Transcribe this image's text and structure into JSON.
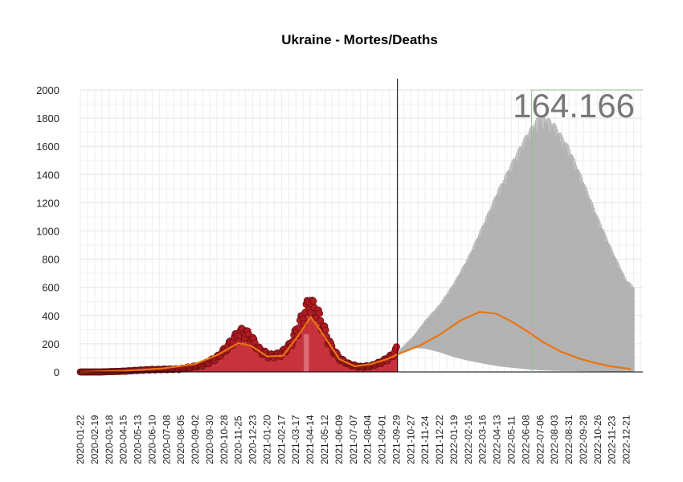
{
  "chart_data": {
    "type": "bar",
    "title": "Ukraine - Mortes/Deaths",
    "annotation": "164.166",
    "ylim": [
      0,
      2000
    ],
    "y_ticks": [
      0,
      200,
      400,
      600,
      800,
      1000,
      1200,
      1400,
      1600,
      1800,
      2000
    ],
    "x_range": [
      "2020-01-22",
      "2023-01-22"
    ],
    "x_ticks": [
      "2020-01-22",
      "2020-02-19",
      "2020-03-18",
      "2020-04-15",
      "2020-05-13",
      "2020-06-10",
      "2020-07-08",
      "2020-08-05",
      "2020-09-02",
      "2020-09-30",
      "2020-10-28",
      "2020-11-25",
      "2020-12-23",
      "2021-01-20",
      "2021-02-17",
      "2021-03-17",
      "2021-04-14",
      "2021-05-12",
      "2021-06-09",
      "2021-07-07",
      "2021-08-04",
      "2021-09-01",
      "2021-09-29",
      "2021-10-27",
      "2021-11-24",
      "2021-12-22",
      "2022-01-19",
      "2022-02-16",
      "2022-03-16",
      "2022-04-13",
      "2022-05-11",
      "2022-06-08",
      "2022-07-06",
      "2022-08-03",
      "2022-08-31",
      "2022-09-28",
      "2022-10-26",
      "2022-11-23",
      "2022-12-21"
    ],
    "forecast_start": "2021-10-01",
    "vertical_marker": "2022-06-19",
    "grid": true,
    "observed_daily": {
      "dates": [
        "2020-01-22",
        "2020-03-01",
        "2020-04-15",
        "2020-06-01",
        "2020-08-01",
        "2020-09-15",
        "2020-10-15",
        "2020-11-01",
        "2020-11-20",
        "2020-12-05",
        "2020-12-20",
        "2021-01-05",
        "2021-01-25",
        "2021-02-15",
        "2021-03-05",
        "2021-03-25",
        "2021-04-05",
        "2021-04-12",
        "2021-04-20",
        "2021-04-28",
        "2021-05-10",
        "2021-05-25",
        "2021-06-10",
        "2021-06-30",
        "2021-07-20",
        "2021-08-10",
        "2021-09-01",
        "2021-09-20",
        "2021-09-30"
      ],
      "values": [
        0,
        0,
        5,
        15,
        20,
        45,
        100,
        160,
        240,
        280,
        230,
        150,
        110,
        120,
        180,
        330,
        420,
        470,
        440,
        400,
        300,
        170,
        90,
        50,
        35,
        40,
        70,
        110,
        160
      ]
    },
    "trend_line": {
      "name": "trend",
      "color": "#e87511",
      "dates": [
        "2020-01-22",
        "2020-04-15",
        "2020-07-01",
        "2020-09-01",
        "2020-10-15",
        "2020-11-25",
        "2020-12-20",
        "2021-01-20",
        "2021-02-20",
        "2021-03-20",
        "2021-04-15",
        "2021-05-10",
        "2021-06-10",
        "2021-07-10",
        "2021-08-10",
        "2021-09-10",
        "2021-10-01",
        "2021-11-15",
        "2021-12-22",
        "2022-02-01",
        "2022-03-10",
        "2022-04-10",
        "2022-05-10",
        "2022-06-10",
        "2022-07-10",
        "2022-08-15",
        "2022-09-20",
        "2022-10-20",
        "2022-11-20",
        "2022-12-21",
        "2022-12-30"
      ],
      "values": [
        0,
        8,
        25,
        55,
        120,
        205,
        185,
        110,
        115,
        250,
        390,
        260,
        90,
        40,
        55,
        90,
        125,
        190,
        265,
        365,
        425,
        415,
        360,
        290,
        215,
        145,
        95,
        65,
        40,
        25,
        20
      ]
    },
    "forecast_band": {
      "color": "#b3b3b3",
      "dates": [
        "2021-10-01",
        "2021-11-01",
        "2021-11-24",
        "2021-12-22",
        "2022-01-19",
        "2022-02-16",
        "2022-03-16",
        "2022-04-13",
        "2022-05-11",
        "2022-06-08",
        "2022-06-25",
        "2022-07-06",
        "2022-07-20",
        "2022-08-03",
        "2022-08-31",
        "2022-09-28",
        "2022-10-26",
        "2022-11-23",
        "2022-12-21",
        "2023-01-05"
      ],
      "upper": [
        140,
        250,
        360,
        470,
        620,
        800,
        1020,
        1250,
        1450,
        1640,
        1730,
        1780,
        1760,
        1720,
        1560,
        1330,
        1080,
        850,
        640,
        590
      ],
      "lower": [
        130,
        170,
        165,
        140,
        105,
        80,
        60,
        42,
        30,
        20,
        15,
        12,
        10,
        8,
        6,
        5,
        4,
        3,
        2,
        2
      ]
    }
  }
}
